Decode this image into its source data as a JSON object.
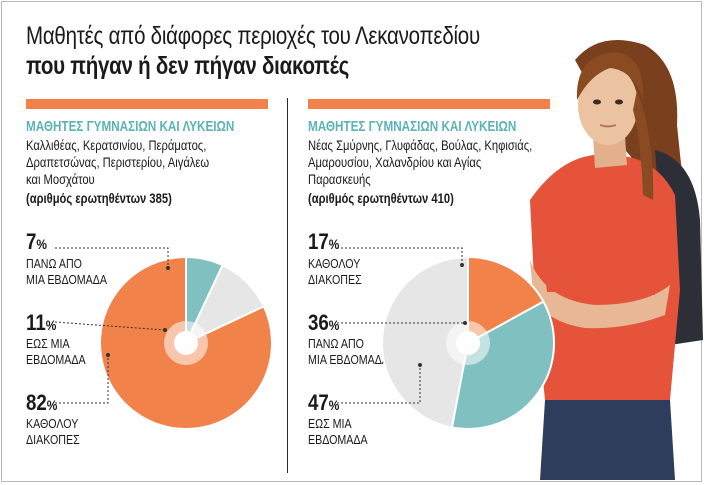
{
  "title": {
    "line1": "Μαθητές από διάφορες περιοχές του Λεκανοπεδίου",
    "line2": "που πήγαν ή δεν πήγαν διακοπές"
  },
  "colors": {
    "accent": "#f0824a",
    "teal": "#80c0c0",
    "grey": "#e6e6e6",
    "subtitle": "#5bb3b5"
  },
  "chart_data": [
    {
      "type": "pie",
      "subtitle": "ΜΑΘΗΤΕΣ ΓΥΜΝΑΣΙΩΝ ΚΑΙ ΛΥΚΕΙΩΝ",
      "areas": [
        "Καλλιθέας, Κερατσινίου, Περάματος,",
        "Δραπετσώνας, Περιστερίου, Αιγάλεω",
        "και Μοσχάτου"
      ],
      "respondents": "(αριθμός ερωτηθέντων 385)",
      "slices": [
        {
          "value": 7,
          "label_lines": [
            "ΠΑΝΩ ΑΠΟ",
            "ΜΙΑ ΕΒΔΟΜΑΔΑ"
          ],
          "color": "#80c0c0"
        },
        {
          "value": 11,
          "label_lines": [
            "ΕΩΣ ΜΙΑ",
            "ΕΒΔΟΜΑΔΑ"
          ],
          "color": "#e6e6e6"
        },
        {
          "value": 82,
          "label_lines": [
            "ΚΑΘΟΛΟΥ",
            "ΔΙΑΚΟΠΕΣ"
          ],
          "color": "#f0824a"
        }
      ]
    },
    {
      "type": "pie",
      "subtitle": "ΜΑΘΗΤΕΣ ΓΥΜΝΑΣΙΩΝ ΚΑΙ ΛΥΚΕΙΩΝ",
      "areas": [
        "Νέας Σμύρνης, Γλυφάδας, Βούλας, Κηφισιάς,",
        "Αμαρουσίου, Χαλανδρίου και Αγίας",
        "Παρασκευής"
      ],
      "respondents": "(αριθμός ερωτηθέντων 410)",
      "slices": [
        {
          "value": 17,
          "label_lines": [
            "ΚΑΘΟΛΟΥ",
            "ΔΙΑΚΟΠΕΣ"
          ],
          "color": "#f0824a"
        },
        {
          "value": 36,
          "label_lines": [
            "ΠΑΝΩ ΑΠΟ",
            "ΜΙΑ ΕΒΔΟΜΑΔΑ"
          ],
          "color": "#80c0c0"
        },
        {
          "value": 47,
          "label_lines": [
            "ΕΩΣ ΜΙΑ",
            "ΕΒΔΟΜΑΔΑ"
          ],
          "color": "#e6e6e6"
        }
      ]
    }
  ]
}
